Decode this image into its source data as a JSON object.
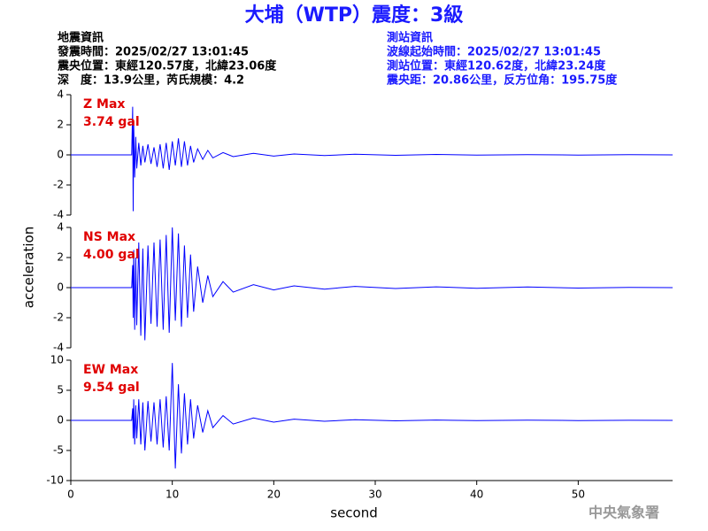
{
  "header": {
    "title": "大埔（WTP）震度：3級",
    "left_info": [
      "地震資訊",
      "發震時間：2025/02/27 13:01:45",
      "震央位置：東經120.57度，北緯23.06度",
      "深　度：13.9公里，芮氏規模：4.2"
    ],
    "right_info": [
      "測站資訊",
      "波線起始時間：2025/02/27 13:01:45",
      "測站位置：東經120.62度，北緯23.24度",
      "震央距：20.86公里，反方位角：195.75度"
    ],
    "y_axis_label": "acceleration",
    "footer": "中央氣象署"
  },
  "x_axis": {
    "label": "second",
    "xlim": [
      0,
      59.3
    ],
    "xticks": [
      0,
      10,
      20,
      30,
      40,
      50
    ]
  },
  "chart_data": [
    {
      "type": "line",
      "label": "Z Max",
      "max_label": "3.74 gal",
      "ylim": [
        -4,
        4
      ],
      "yticks": [
        -4,
        -2,
        0,
        2,
        4
      ],
      "x": [
        0,
        6.0,
        6.1,
        6.15,
        6.2,
        6.3,
        6.4,
        6.5,
        6.7,
        6.9,
        7.1,
        7.3,
        7.6,
        7.9,
        8.2,
        8.5,
        8.8,
        9.1,
        9.4,
        9.7,
        10.0,
        10.3,
        10.6,
        10.9,
        11.2,
        11.5,
        11.8,
        12.1,
        12.5,
        13,
        13.5,
        14,
        15,
        16,
        18,
        20,
        22,
        25,
        28,
        32,
        36,
        40,
        45,
        50,
        55,
        59.3
      ],
      "series": [
        {
          "color": "#0000ff",
          "values": [
            0,
            0,
            3.2,
            -3.74,
            2.0,
            -1.5,
            1.2,
            -0.9,
            0.8,
            -0.7,
            0.6,
            -0.5,
            0.7,
            -0.6,
            0.5,
            -0.8,
            0.7,
            -0.9,
            0.8,
            -1.0,
            0.9,
            -0.7,
            1.1,
            -0.8,
            0.9,
            -0.7,
            0.6,
            -0.5,
            0.4,
            -0.3,
            0.3,
            -0.2,
            0.15,
            -0.12,
            0.1,
            -0.08,
            0.06,
            -0.05,
            0.04,
            -0.03,
            0.03,
            -0.02,
            0.02,
            -0.01,
            0.01,
            0
          ]
        }
      ]
    },
    {
      "type": "line",
      "label": "NS Max",
      "max_label": "4.00 gal",
      "ylim": [
        -4,
        4
      ],
      "yticks": [
        -4,
        -2,
        0,
        2,
        4
      ],
      "x": [
        0,
        6.0,
        6.1,
        6.15,
        6.2,
        6.3,
        6.4,
        6.5,
        6.7,
        6.9,
        7.1,
        7.3,
        7.6,
        7.9,
        8.2,
        8.5,
        8.8,
        9.1,
        9.4,
        9.7,
        10.0,
        10.3,
        10.6,
        10.9,
        11.2,
        11.5,
        11.8,
        12.1,
        12.5,
        13,
        13.5,
        14,
        15,
        16,
        18,
        20,
        22,
        25,
        28,
        32,
        36,
        40,
        45,
        50,
        55,
        59.3
      ],
      "series": [
        {
          "color": "#0000ff",
          "values": [
            0,
            0,
            1.5,
            -2.0,
            2.5,
            -2.8,
            2.0,
            -2.5,
            3.0,
            -3.2,
            2.6,
            -3.5,
            2.8,
            -2.4,
            3.0,
            -2.6,
            3.2,
            -2.8,
            3.5,
            -3.0,
            4.0,
            -2.2,
            3.6,
            -2.6,
            2.8,
            -2.0,
            2.2,
            -1.6,
            1.4,
            -1.0,
            0.8,
            -0.6,
            0.4,
            -0.3,
            0.2,
            -0.15,
            0.12,
            -0.1,
            0.08,
            -0.06,
            0.05,
            -0.04,
            0.04,
            -0.03,
            0.02,
            0
          ]
        }
      ]
    },
    {
      "type": "line",
      "label": "EW Max",
      "max_label": "9.54 gal",
      "ylim": [
        -10,
        10
      ],
      "yticks": [
        -10,
        -5,
        0,
        5,
        10
      ],
      "x": [
        0,
        6.0,
        6.1,
        6.15,
        6.2,
        6.3,
        6.4,
        6.5,
        6.7,
        6.9,
        7.1,
        7.3,
        7.6,
        7.9,
        8.2,
        8.5,
        8.8,
        9.1,
        9.4,
        9.7,
        10.0,
        10.3,
        10.6,
        10.9,
        11.2,
        11.5,
        11.8,
        12.1,
        12.5,
        13,
        13.5,
        14,
        15,
        16,
        18,
        20,
        22,
        25,
        28,
        32,
        36,
        40,
        45,
        50,
        55,
        59.3
      ],
      "series": [
        {
          "color": "#0000ff",
          "values": [
            0,
            0,
            2.0,
            -3.0,
            3.5,
            -4.0,
            2.5,
            -3.0,
            3.5,
            -4.0,
            3.0,
            -5.0,
            3.2,
            -3.5,
            3.0,
            -4.0,
            3.5,
            -4.5,
            4.0,
            -5.0,
            9.54,
            -8.0,
            6.0,
            -5.5,
            4.5,
            -4.0,
            3.5,
            -3.0,
            2.5,
            -2.0,
            1.6,
            -1.2,
            0.8,
            -0.6,
            0.4,
            -0.3,
            0.2,
            -0.15,
            0.1,
            -0.08,
            0.06,
            -0.05,
            0.04,
            -0.03,
            0.02,
            0
          ]
        }
      ]
    }
  ]
}
